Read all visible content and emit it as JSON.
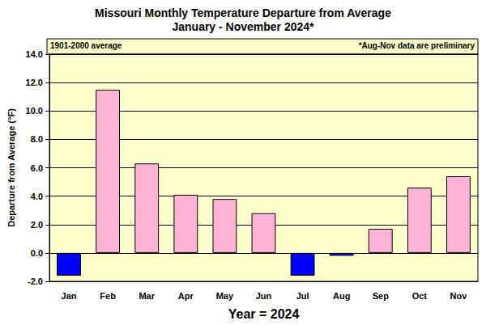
{
  "chart_data": {
    "type": "bar",
    "title": "Missouri Monthly Temperature Departure from Average",
    "subtitle": "January - November 2024*",
    "annotations": [
      "1901-2000 average",
      "*Aug-Nov data are preliminary"
    ],
    "xlabel": "Year = 2024",
    "ylabel": "Departure from Average (°F)",
    "categories": [
      "Jan",
      "Feb",
      "Mar",
      "Apr",
      "May",
      "Jun",
      "Jul",
      "Aug",
      "Sep",
      "Oct",
      "Nov"
    ],
    "values": [
      -1.6,
      11.5,
      6.3,
      4.1,
      3.8,
      2.8,
      -1.6,
      -0.2,
      1.7,
      4.6,
      5.4
    ],
    "colors": [
      "#0000ff",
      "#ffb3d9",
      "#ffb3d9",
      "#ffb3d9",
      "#ffb3d9",
      "#ffb3d9",
      "#0000ff",
      "#0000ff",
      "#ffb3d9",
      "#ffb3d9",
      "#ffb3d9"
    ],
    "ylim": [
      -2,
      14
    ],
    "yticks": [
      {
        "value": -2,
        "label": "-2.0"
      },
      {
        "value": 0,
        "label": "0.0"
      },
      {
        "value": 2,
        "label": "2.0"
      },
      {
        "value": 4,
        "label": "4.0"
      },
      {
        "value": 6,
        "label": "6.0"
      },
      {
        "value": 8,
        "label": "8.0"
      },
      {
        "value": 10,
        "label": "10.0"
      },
      {
        "value": 12,
        "label": "12.0"
      },
      {
        "value": 14,
        "label": "14.0"
      }
    ],
    "grid": true
  }
}
